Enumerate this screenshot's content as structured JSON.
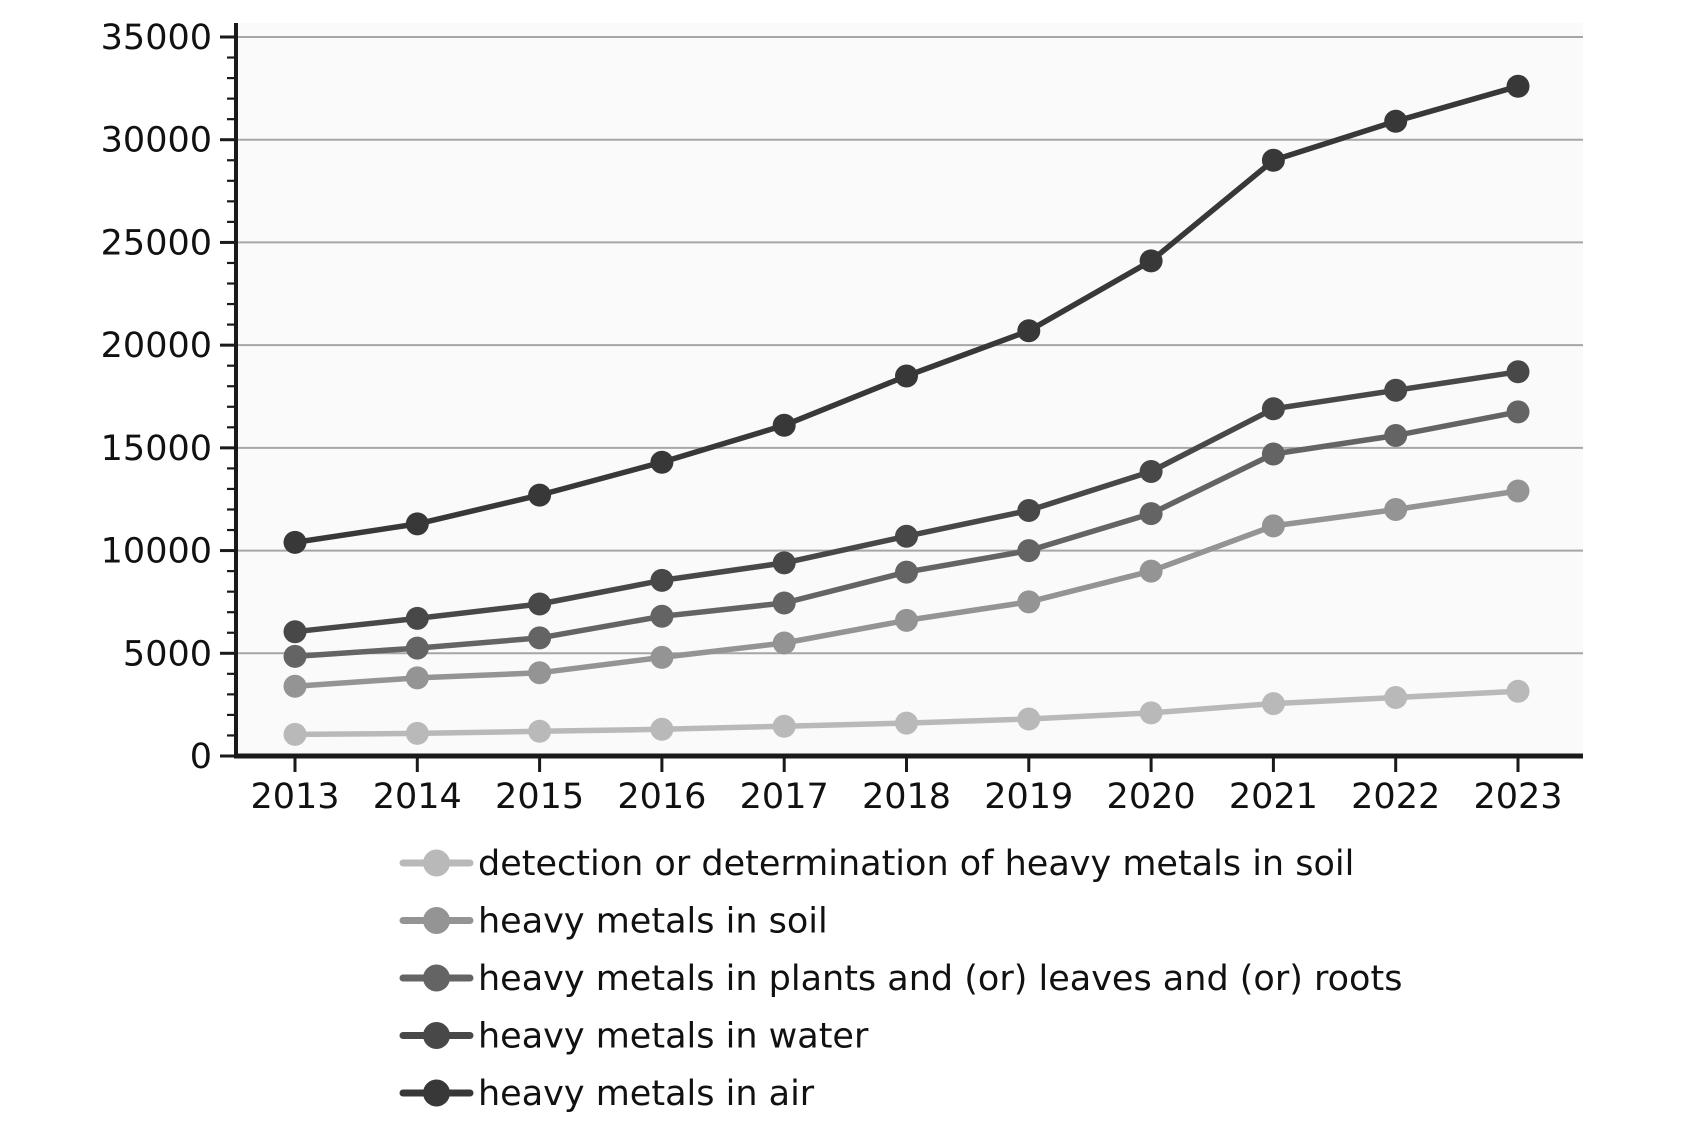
{
  "chart_data": {
    "type": "line",
    "title": "",
    "xlabel": "",
    "ylabel": "",
    "categories": [
      "2013",
      "2014",
      "2015",
      "2016",
      "2017",
      "2018",
      "2019",
      "2020",
      "2021",
      "2022",
      "2023"
    ],
    "series": [
      {
        "name": "detection or determination of heavy metals in soil",
        "color": "#b9b9b9",
        "values": [
          1050,
          1100,
          1200,
          1300,
          1450,
          1600,
          1800,
          2100,
          2550,
          2850,
          3150
        ]
      },
      {
        "name": "heavy metals in soil",
        "color": "#949494",
        "values": [
          3400,
          3800,
          4050,
          4800,
          5500,
          6600,
          7500,
          9000,
          11200,
          12000,
          12900
        ]
      },
      {
        "name": "heavy metals in plants and (or) leaves and (or) roots",
        "color": "#646464",
        "values": [
          4850,
          5250,
          5750,
          6800,
          7450,
          8950,
          10000,
          11800,
          14700,
          15600,
          16750
        ]
      },
      {
        "name": "heavy metals in water",
        "color": "#484848",
        "values": [
          6050,
          6700,
          7400,
          8550,
          9400,
          10700,
          11950,
          13850,
          16900,
          17800,
          18700
        ]
      },
      {
        "name": "heavy metals in air",
        "color": "#383838",
        "values": [
          10400,
          11300,
          12700,
          14300,
          16100,
          18500,
          20700,
          24100,
          29000,
          30900,
          32600
        ]
      }
    ],
    "ylim": [
      0,
      35000
    ],
    "y_ticks": [
      0,
      5000,
      10000,
      15000,
      20000,
      25000,
      30000,
      35000
    ],
    "y_tick_labels": [
      "0",
      "5000",
      "10000",
      "15000",
      "20000",
      "25000",
      "30000",
      "35000"
    ],
    "y_minor_tick_step": 1000,
    "grid": "horizontal",
    "legend_position": "bottom-left"
  },
  "style_colors": {
    "grid_line": "#a6a6a6",
    "axis_line": "#1a1a1a",
    "tick_label": "#0d0d0d",
    "plot_background": "#fbfafa",
    "page_background": "#ffffff"
  }
}
